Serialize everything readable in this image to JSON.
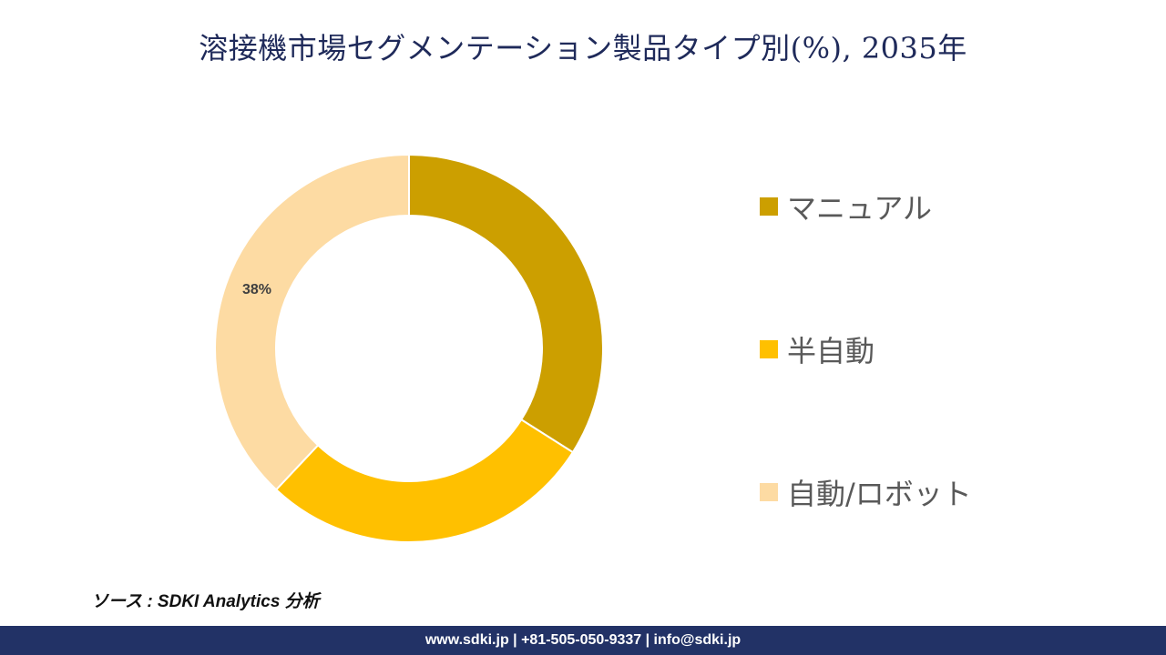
{
  "title": "溶接機市場セグメンテーション製品タイプ別(%), 2035年",
  "chart_data": {
    "type": "pie",
    "title": "溶接機市場セグメンテーション製品タイプ別(%), 2035年",
    "categories": [
      "マニュアル",
      "半自動",
      "自動/ロボット"
    ],
    "values": [
      34,
      28,
      38
    ],
    "colors": [
      "#CC9F00",
      "#FFC000",
      "#FDDBA3"
    ],
    "data_labels": [
      "",
      "",
      "38%"
    ],
    "legend_position": "right"
  },
  "legend": {
    "items": [
      {
        "label": "マニュアル",
        "color": "#CC9F00"
      },
      {
        "label": "半自動",
        "color": "#FFC000"
      },
      {
        "label": "自動/ロボット",
        "color": "#FDDBA3"
      }
    ]
  },
  "source": "ソース : SDKI Analytics 分析",
  "footer": "www.sdki.jp | +81-505-050-9337 | info@sdki.jp"
}
